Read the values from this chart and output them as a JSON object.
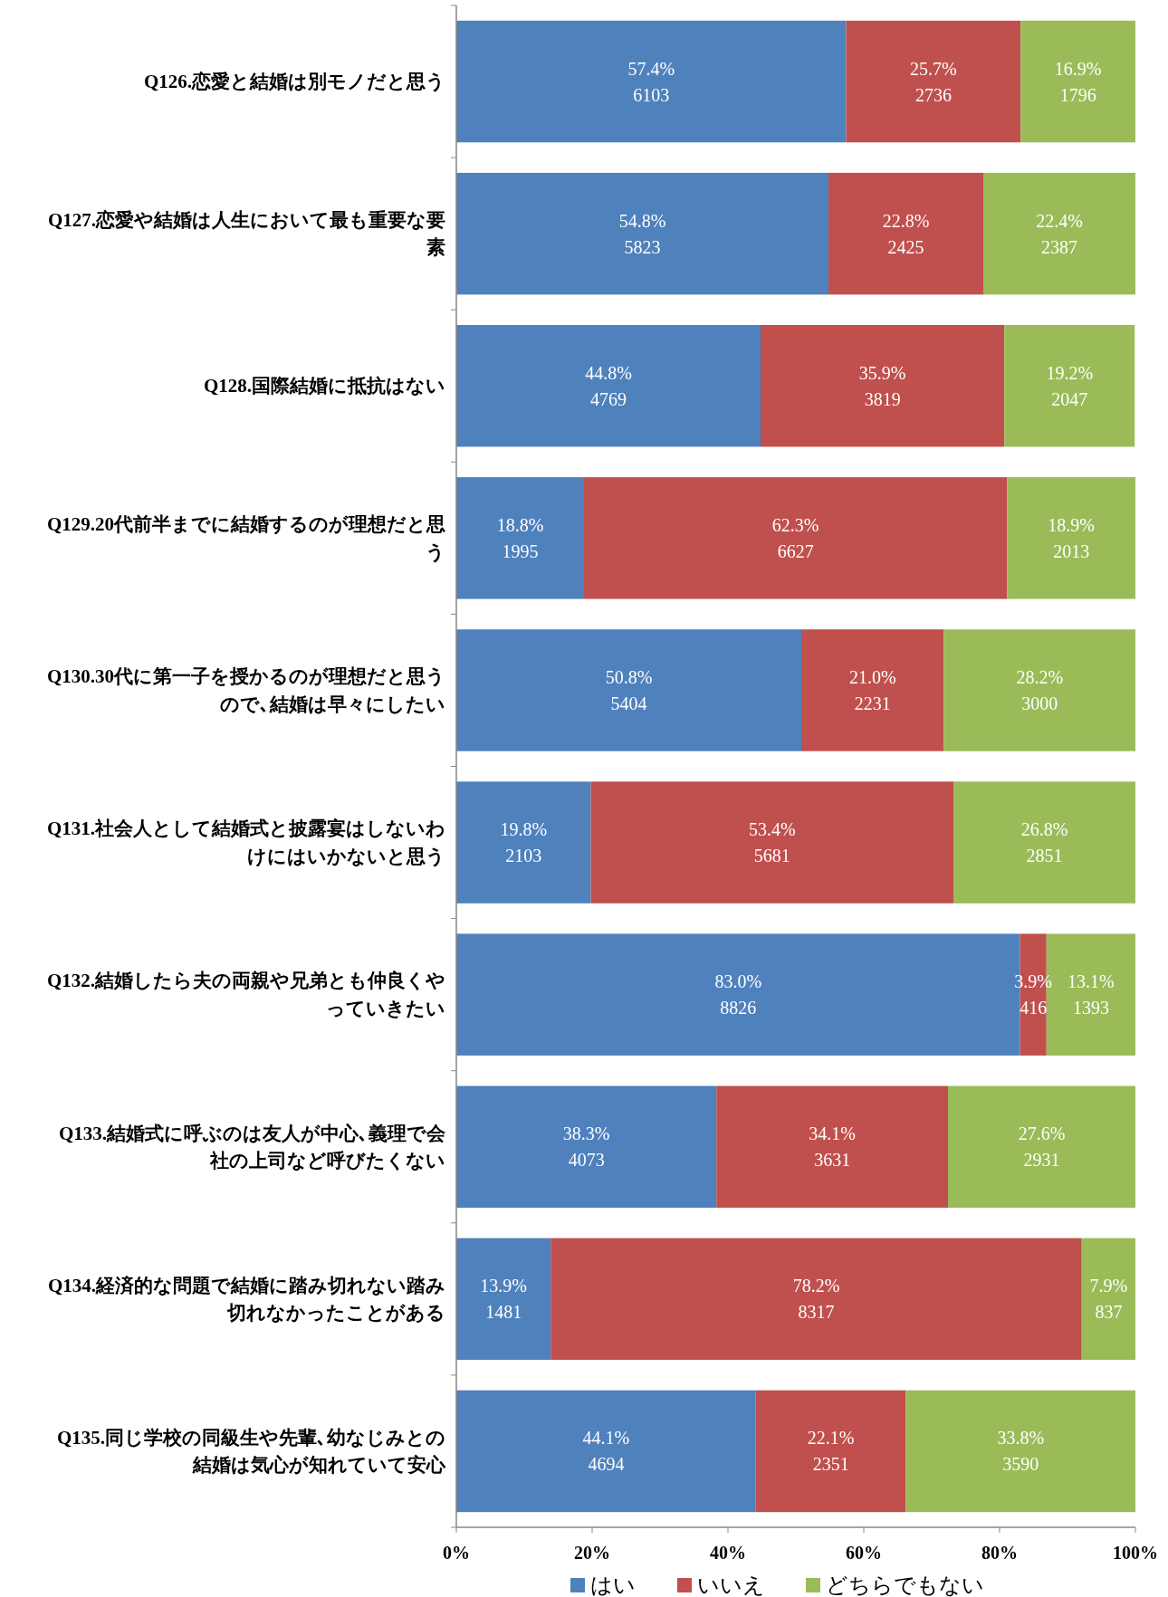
{
  "chart_data": {
    "type": "bar",
    "orientation": "horizontal",
    "stacked": true,
    "categories": [
      "Q126.恋愛と結婚は別モノだと思う",
      "Q127.恋愛や結婚は人生において最も重要な要素",
      "Q128.国際結婚に抵抗はない",
      "Q129.20代前半までに結婚するのが理想だと思う",
      "Q130.30代に第一子を授かるのが理想だと思うので､結婚は早々にしたい",
      "Q131.社会人として結婚式と披露宴はしないわけにはいかないと思う",
      "Q132.結婚したら夫の両親や兄弟とも仲良くやっていきたい",
      "Q133.結婚式に呼ぶのは友人が中心､義理で会社の上司など呼びたくない",
      "Q134.経済的な問題で結婚に踏み切れない踏み切れなかったことがある",
      "Q135.同じ学校の同級生や先輩､幼なじみとの結婚は気心が知れていて安心"
    ],
    "series": [
      {
        "name": "はい",
        "color": "#4f81bd",
        "values": [
          57.4,
          54.8,
          44.8,
          18.8,
          50.8,
          19.8,
          83.0,
          38.3,
          13.9,
          44.1
        ],
        "value_labels": [
          "57.4%\n6103",
          "54.8%\n5823",
          "44.8%\n4769",
          "18.8%\n1995",
          "50.8%\n5404",
          "19.8%\n2103",
          "83.0%\n8826",
          "38.3%\n4073",
          "13.9%\n1481",
          "44.1%\n4694"
        ]
      },
      {
        "name": "いいえ",
        "color": "#c0504d",
        "values": [
          25.7,
          22.8,
          35.9,
          62.3,
          21.0,
          53.4,
          3.9,
          34.1,
          78.2,
          22.1
        ],
        "value_labels": [
          "25.7%\n2736",
          "22.8%\n2425",
          "35.9%\n3819",
          "62.3%\n6627",
          "21.0%\n2231",
          "53.4%\n5681",
          "3.9%\n416",
          "34.1%\n3631",
          "78.2%\n8317",
          "22.1%\n2351"
        ]
      },
      {
        "name": "どちらでもない",
        "color": "#9bbb59",
        "values": [
          16.9,
          22.4,
          19.2,
          18.9,
          28.2,
          26.8,
          13.1,
          27.6,
          7.9,
          33.8
        ],
        "value_labels": [
          "16.9%\n1796",
          "22.4%\n2387",
          "19.2%\n2047",
          "18.9%\n2013",
          "28.2%\n3000",
          "26.8%\n2851",
          "13.1%\n1393",
          "27.6%\n2931",
          "7.9%\n837",
          "33.8%\n3590"
        ]
      }
    ],
    "xlim": [
      0,
      100
    ],
    "xticks": [
      {
        "value": 0,
        "label": "0%"
      },
      {
        "value": 20,
        "label": "20%"
      },
      {
        "value": 40,
        "label": "40%"
      },
      {
        "value": 60,
        "label": "60%"
      },
      {
        "value": 80,
        "label": "80%"
      },
      {
        "value": 100,
        "label": "100%"
      }
    ],
    "grid": false,
    "legend": "bottom"
  }
}
